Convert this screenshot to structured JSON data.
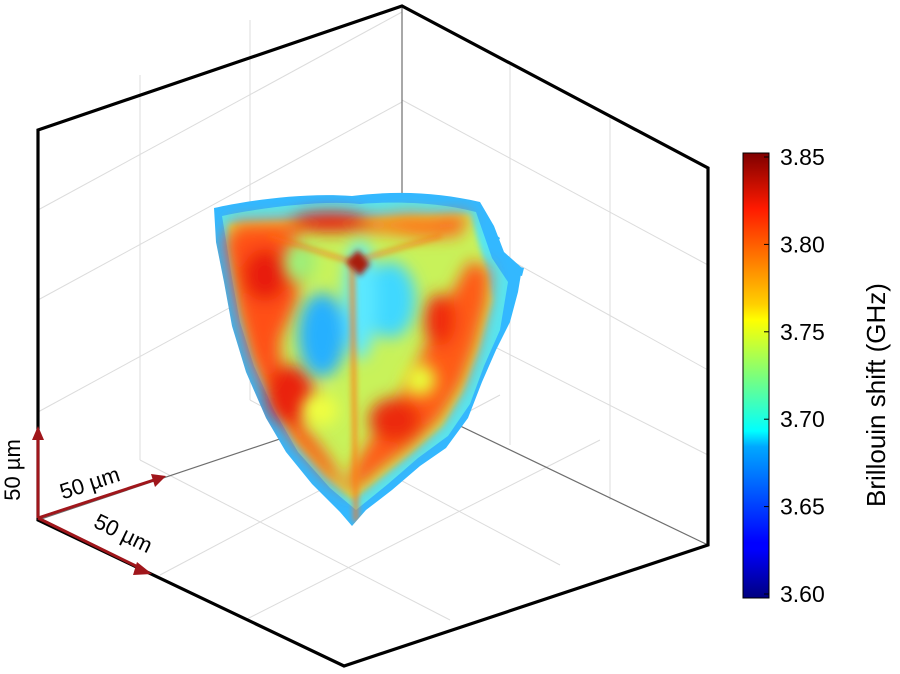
{
  "chart_data": {
    "type": "heatmap",
    "plot_kind": "3d-volume-rendering",
    "title": "",
    "grid": true,
    "colorbar": {
      "label": "Brillouin shift (GHz)",
      "min": 3.6,
      "max": 3.85,
      "ticks": [
        "3.85",
        "3.80",
        "3.75",
        "3.70",
        "3.65",
        "3.60"
      ],
      "colormap": "jet",
      "placement": "right"
    },
    "scale_bars": [
      {
        "label": "50 µm",
        "axis": "vertical"
      },
      {
        "label": "50 µm",
        "axis": "back-left"
      },
      {
        "label": "50 µm",
        "axis": "front-right"
      }
    ],
    "colors": {
      "scale_bar": "#a0161b",
      "box_edge": "#000000",
      "grid": "#d9d9d9"
    }
  }
}
